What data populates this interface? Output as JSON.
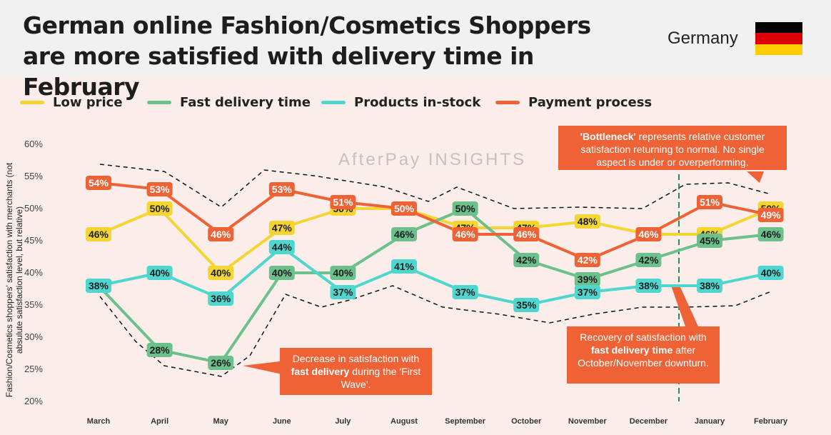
{
  "header": {
    "title_line1": "German online Fashion/Cosmetics Shoppers",
    "title_line2": "are more satisfied with delivery time in February",
    "country": "Germany",
    "flag_colors": [
      "#000000",
      "#dd0000",
      "#ffce00"
    ]
  },
  "watermark": "AfterPay INSIGHTS",
  "callouts": {
    "bottleneck": {
      "bold": "'Bottleneck'",
      "text": " represents relative customer satisfaction returning to normal. No single aspect is under or overperforming."
    },
    "recovery": {
      "pre": "Recovery of satisfaction with ",
      "bold": "fast delivery time",
      "post": " after October/November downturn."
    },
    "decrease": {
      "pre": "Decrease in satisfaction with ",
      "bold": "fast delivery",
      "post": " during the 'First Wave'."
    }
  },
  "chart_data": {
    "type": "line",
    "title": "German online Fashion/Cosmetics Shoppers are more satisfied with delivery time in February",
    "ylabel": "Fashion/Cosmetics shoppers' satisfaction with merchants (not absulute satisfaction level, but relative)",
    "xlabel": "",
    "ylim": [
      20,
      60
    ],
    "yticks": [
      "20%",
      "25%",
      "30%",
      "35%",
      "40%",
      "45%",
      "50%",
      "55%",
      "60%"
    ],
    "categories": [
      "March",
      "April",
      "May",
      "June",
      "July",
      "August",
      "September",
      "October",
      "November",
      "December",
      "January",
      "February"
    ],
    "legend_position": "top",
    "series": [
      {
        "name": "Low price",
        "color": "#f4d532",
        "values": [
          46,
          50,
          40,
          47,
          50,
          50,
          47,
          47,
          48,
          46,
          46,
          50
        ]
      },
      {
        "name": "Fast delivery time",
        "color": "#6cc08b",
        "values": [
          38,
          28,
          26,
          40,
          40,
          46,
          50,
          42,
          39,
          42,
          45,
          46
        ]
      },
      {
        "name": "Products in-stock",
        "color": "#4fd6cf",
        "values": [
          38,
          40,
          36,
          44,
          37,
          41,
          37,
          35,
          37,
          38,
          38,
          40
        ]
      },
      {
        "name": "Payment process",
        "color": "#ee6236",
        "values": [
          54,
          53,
          46,
          53,
          51,
          50,
          46,
          46,
          42,
          46,
          51,
          49
        ]
      }
    ]
  }
}
